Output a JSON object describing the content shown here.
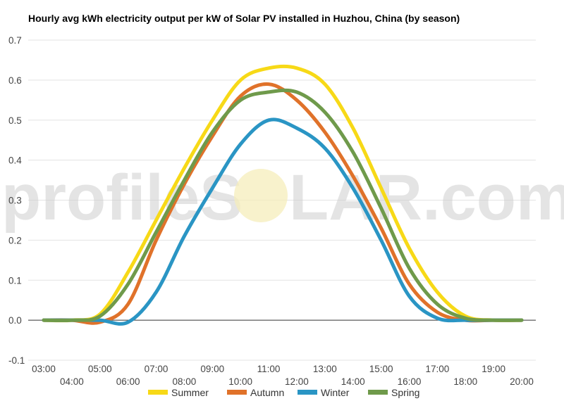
{
  "chart_data": {
    "type": "line",
    "title": "Hourly avg kWh electricity output per kW of Solar PV installed in Huzhou, China (by season)",
    "xlabel": "",
    "ylabel": "",
    "watermark": {
      "left": "profileS",
      "right": "LAR.com"
    },
    "ylim": [
      -0.1,
      0.7
    ],
    "yticks": [
      "-0.1",
      "0.0",
      "0.1",
      "0.2",
      "0.3",
      "0.4",
      "0.5",
      "0.6",
      "0.7"
    ],
    "x": [
      "03:00",
      "04:00",
      "05:00",
      "06:00",
      "07:00",
      "08:00",
      "09:00",
      "10:00",
      "11:00",
      "12:00",
      "13:00",
      "14:00",
      "15:00",
      "16:00",
      "17:00",
      "18:00",
      "19:00",
      "20:00"
    ],
    "grid": true,
    "legend_position": "bottom",
    "series": [
      {
        "name": "Summer",
        "color": "#f7d917",
        "values": [
          0.0,
          0.0,
          0.015,
          0.12,
          0.25,
          0.38,
          0.5,
          0.6,
          0.63,
          0.63,
          0.59,
          0.48,
          0.33,
          0.18,
          0.07,
          0.01,
          0.0,
          0.0
        ]
      },
      {
        "name": "Autumn",
        "color": "#e0722a",
        "values": [
          0.0,
          0.0,
          -0.005,
          0.04,
          0.2,
          0.34,
          0.46,
          0.56,
          0.59,
          0.55,
          0.47,
          0.36,
          0.23,
          0.09,
          0.02,
          0.0,
          0.0,
          0.0
        ]
      },
      {
        "name": "Winter",
        "color": "#2a95c4",
        "values": [
          0.0,
          0.0,
          0.0,
          -0.005,
          0.07,
          0.21,
          0.33,
          0.44,
          0.5,
          0.48,
          0.43,
          0.33,
          0.2,
          0.06,
          0.005,
          0.0,
          0.0,
          0.0
        ]
      },
      {
        "name": "Spring",
        "color": "#6f9a4b",
        "values": [
          0.0,
          0.0,
          0.01,
          0.09,
          0.22,
          0.35,
          0.47,
          0.55,
          0.57,
          0.57,
          0.52,
          0.42,
          0.28,
          0.13,
          0.04,
          0.005,
          0.0,
          0.0
        ]
      }
    ]
  }
}
